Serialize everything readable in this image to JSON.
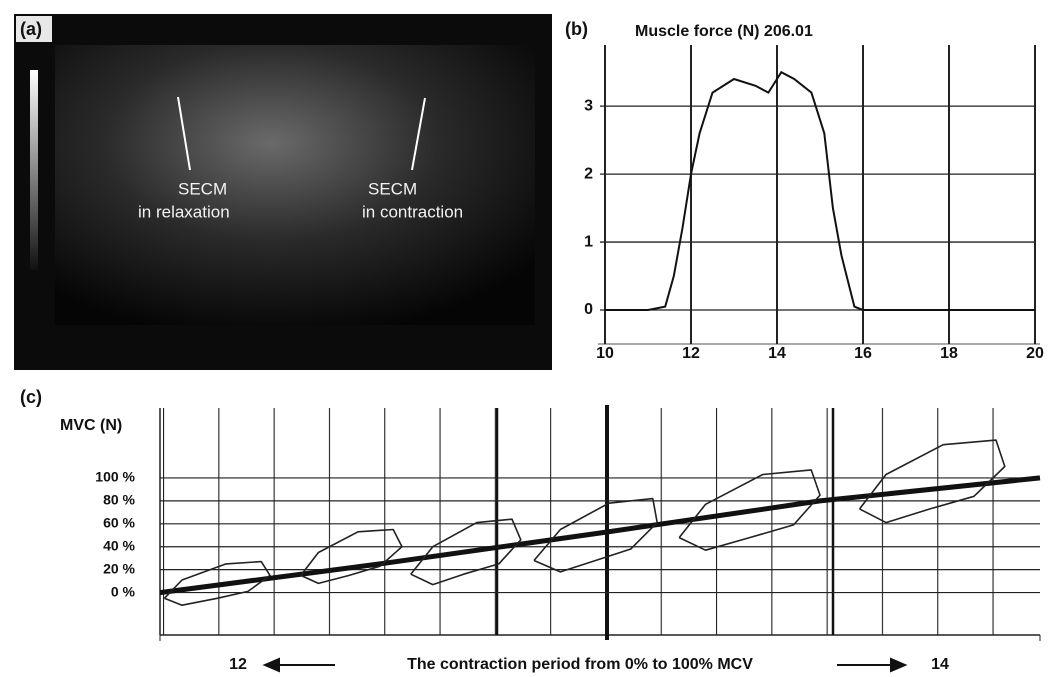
{
  "panel_a": {
    "label": "(a)",
    "annotations": [
      [
        "SECM",
        "in relaxation"
      ],
      [
        "SECM",
        "in contraction"
      ]
    ]
  },
  "chart_data": [
    {
      "type": "line",
      "panel": "(b)",
      "title": "Muscle force (N) 206.01",
      "x": [
        10,
        11,
        11.4,
        11.6,
        11.8,
        12,
        12.2,
        12.5,
        13,
        13.5,
        13.8,
        14.1,
        14.4,
        14.8,
        15.1,
        15.3,
        15.5,
        15.8,
        16,
        18,
        20
      ],
      "series": [
        {
          "color": "#111111",
          "values": [
            0,
            0,
            0.05,
            0.5,
            1.2,
            2.0,
            2.6,
            3.2,
            3.4,
            3.3,
            3.2,
            3.5,
            3.4,
            3.2,
            2.6,
            1.5,
            0.8,
            0.05,
            0,
            0,
            0
          ]
        }
      ],
      "xlim": [
        10,
        20
      ],
      "xticks": [
        10,
        12,
        14,
        16,
        18,
        20
      ],
      "ylim": [
        -0.5,
        3.9
      ],
      "yticks": [
        0,
        1,
        2,
        3
      ],
      "grid": true
    },
    {
      "type": "loops",
      "panel": "(c)",
      "ylabel": "MVC (N)",
      "xlabel": "The contraction period from 0% to 100% MCV",
      "xlim": [
        12,
        14
      ],
      "xticks": [
        12,
        14
      ],
      "ylim": [
        -37,
        161
      ],
      "yticks": [
        {
          "value": 0,
          "label": "0 %"
        },
        {
          "value": 20,
          "label": "20 %"
        },
        {
          "value": 40,
          "label": "40 %"
        },
        {
          "value": 60,
          "label": "60 %"
        },
        {
          "value": 80,
          "label": "80 %"
        },
        {
          "value": 100,
          "label": "100 %"
        }
      ],
      "grid": true,
      "series": [
        {
          "color": "#111111",
          "x": [
            12,
            12.5,
            13,
            13.5,
            14
          ],
          "values": [
            0,
            25,
            52,
            80,
            100
          ]
        },
        {
          "color": "#222222",
          "x": [
            12.01,
            12.05,
            12.13,
            12.2,
            12.25,
            12.23,
            12.15,
            12.05,
            12.01
          ],
          "values": [
            -5,
            -11,
            -5,
            1,
            15,
            27,
            25,
            11,
            -5
          ]
        },
        {
          "color": "#222222",
          "x": [
            12.32,
            12.36,
            12.43,
            12.5,
            12.55,
            12.53,
            12.45,
            12.36,
            12.32
          ],
          "values": [
            15,
            8,
            15,
            23,
            40,
            55,
            53,
            35,
            15
          ]
        },
        {
          "color": "#222222",
          "x": [
            12.57,
            12.62,
            12.69,
            12.77,
            12.82,
            12.8,
            12.72,
            12.62,
            12.57
          ],
          "values": [
            16,
            7,
            16,
            25,
            46,
            64,
            61,
            40,
            16
          ]
        },
        {
          "color": "#222222",
          "x": [
            12.85,
            12.91,
            12.99,
            13.07,
            13.13,
            13.12,
            13.02,
            12.91,
            12.85
          ],
          "values": [
            28,
            18,
            28,
            38,
            61,
            82,
            78,
            55,
            28
          ]
        },
        {
          "color": "#222222",
          "x": [
            13.18,
            13.24,
            13.34,
            13.44,
            13.5,
            13.48,
            13.37,
            13.24,
            13.18
          ],
          "values": [
            48,
            37,
            48,
            59,
            85,
            107,
            103,
            77,
            48
          ]
        },
        {
          "color": "#222222",
          "x": [
            13.59,
            13.65,
            13.75,
            13.85,
            13.92,
            13.9,
            13.78,
            13.65,
            13.59
          ],
          "values": [
            73,
            61,
            73,
            84,
            110,
            133,
            129,
            103,
            73
          ]
        }
      ]
    }
  ]
}
